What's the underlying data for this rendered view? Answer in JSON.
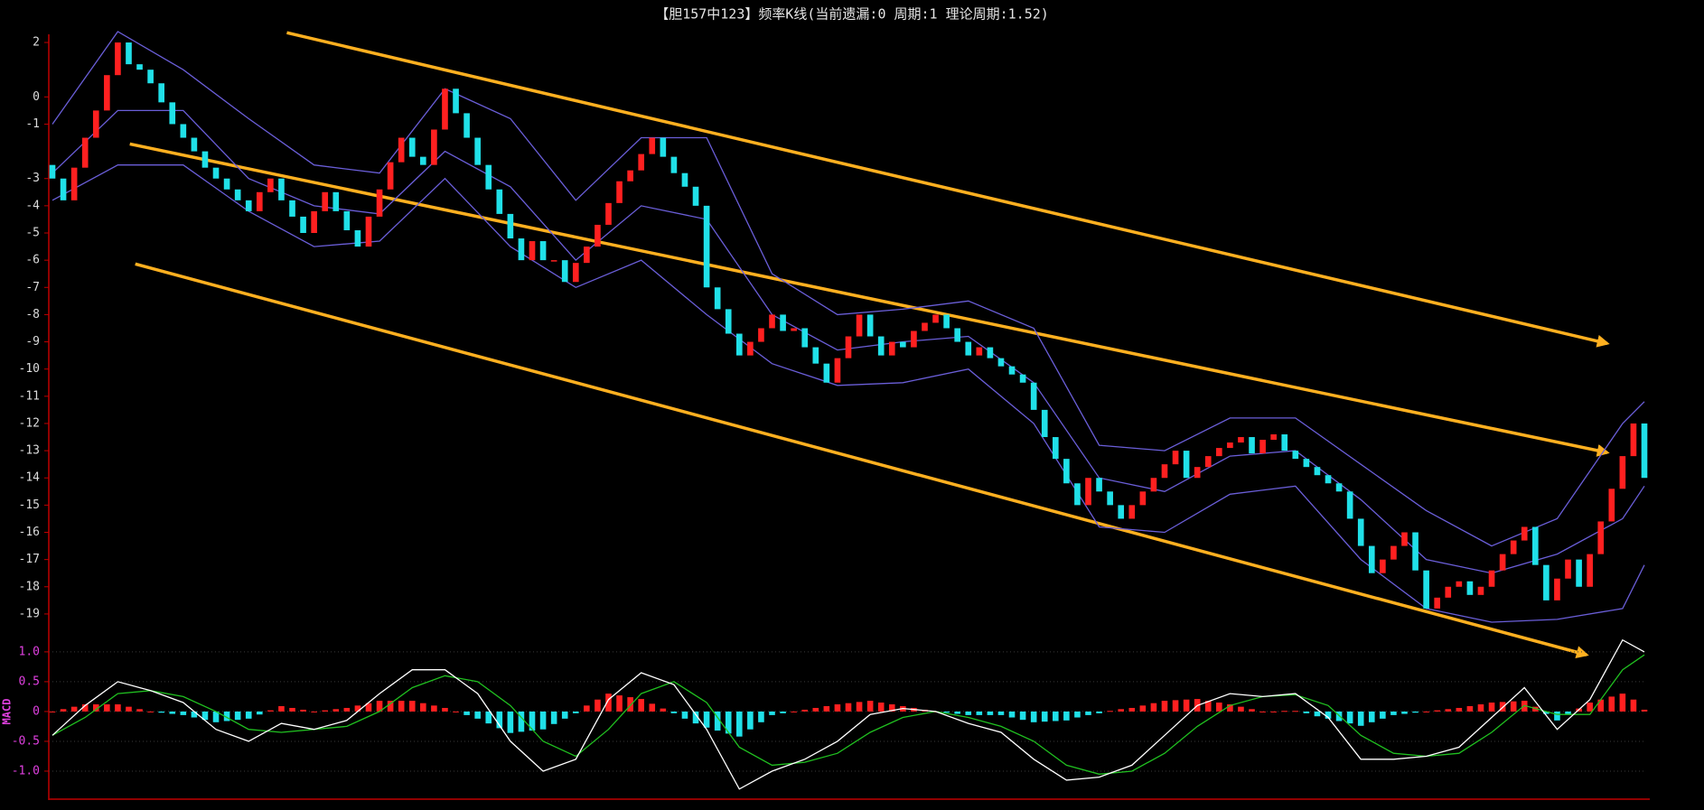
{
  "chart_data": [
    {
      "type": "candlestick",
      "title": "【胆157中123】频率K线(当前遗漏:0 周期:1 理论周期:1.52)",
      "up_color": "#ff2020",
      "down_color": "#20e0e8",
      "xlim": [
        0,
        146
      ],
      "ylim": [
        -19.6,
        2.3
      ],
      "yticks": [
        2,
        0,
        -1,
        -3,
        -4,
        -5,
        -6,
        -7,
        -8,
        -9,
        -10,
        -11,
        -12,
        -13,
        -14,
        -15,
        -16,
        -17,
        -18,
        -19
      ],
      "open": [
        -2.5,
        -3,
        -3.8,
        -2.6,
        -1.5,
        -0.5,
        0.8,
        2,
        1.2,
        1,
        0.5,
        -0.2,
        -1,
        -1.5,
        -2,
        -2.6,
        -3,
        -3.4,
        -3.8,
        -4.2,
        -3.5,
        -3,
        -3.8,
        -4.4,
        -5,
        -4.2,
        -3.5,
        -4.2,
        -4.9,
        -5.5,
        -4.4,
        -3.4,
        -2.4,
        -1.5,
        -2.2,
        -2.5,
        -1.2,
        0.3,
        -0.6,
        -1.5,
        -2.5,
        -3.4,
        -4.3,
        -5.2,
        -6,
        -5.3,
        -6,
        -6,
        -6.8,
        -6.1,
        -5.5,
        -4.7,
        -3.9,
        -3.1,
        -2.7,
        -2.1,
        -1.5,
        -2.2,
        -2.8,
        -3.3,
        -4,
        -7,
        -7.8,
        -8.7,
        -9.5,
        -9,
        -8.5,
        -8,
        -8.6,
        -8.5,
        -9.2,
        -9.8,
        -10.5,
        -9.6,
        -8.8,
        -8,
        -8.8,
        -9.5,
        -9,
        -9.2,
        -8.6,
        -8.3,
        -8,
        -8.5,
        -9,
        -9.5,
        -9.2,
        -9.6,
        -9.9,
        -10.2,
        -10.5,
        -11.5,
        -12.5,
        -13.3,
        -14.2,
        -15,
        -14,
        -14.5,
        -15,
        -15.5,
        -15,
        -14.5,
        -14,
        -13.5,
        -13,
        -14,
        -13.6,
        -13.2,
        -12.9,
        -12.7,
        -12.5,
        -13.1,
        -12.6,
        -12.4,
        -13,
        -13.3,
        -13.6,
        -13.9,
        -14.2,
        -14.5,
        -15.5,
        -16.5,
        -17.5,
        -17,
        -16.5,
        -16,
        -17.4,
        -18.8,
        -18.4,
        -18,
        -17.8,
        -18.3,
        -18,
        -17.4,
        -16.8,
        -16.3,
        -15.8,
        -17.2,
        -18.5,
        -17.7,
        -17,
        -18,
        -16.8,
        -15.6,
        -14.4,
        -13.2,
        -12
      ],
      "close": [
        -3,
        -3.8,
        -2.6,
        -1.5,
        -0.5,
        0.8,
        2,
        1.2,
        1,
        0.5,
        -0.2,
        -1,
        -1.5,
        -2,
        -2.6,
        -3,
        -3.4,
        -3.8,
        -4.2,
        -3.5,
        -3,
        -3.8,
        -4.4,
        -5,
        -4.2,
        -3.5,
        -4.2,
        -4.9,
        -5.5,
        -4.4,
        -3.4,
        -2.4,
        -1.5,
        -2.2,
        -2.5,
        -1.2,
        0.3,
        -0.6,
        -1.5,
        -2.5,
        -3.4,
        -4.3,
        -5.2,
        -6,
        -5.3,
        -6,
        -6,
        -6.8,
        -6.1,
        -5.5,
        -4.7,
        -3.9,
        -3.1,
        -2.7,
        -2.1,
        -1.5,
        -2.2,
        -2.8,
        -3.3,
        -4,
        -7,
        -7.8,
        -8.7,
        -9.5,
        -9,
        -8.5,
        -8,
        -8.6,
        -8.5,
        -9.2,
        -9.8,
        -10.5,
        -9.6,
        -8.8,
        -8,
        -8.8,
        -9.5,
        -9,
        -9.2,
        -8.6,
        -8.3,
        -8,
        -8.5,
        -9,
        -9.5,
        -9.2,
        -9.6,
        -9.9,
        -10.2,
        -10.5,
        -11.5,
        -12.5,
        -13.3,
        -14.2,
        -15,
        -14,
        -14.5,
        -15,
        -15.5,
        -15,
        -14.5,
        -14,
        -13.5,
        -13,
        -14,
        -13.6,
        -13.2,
        -12.9,
        -12.7,
        -12.5,
        -13.1,
        -12.6,
        -12.4,
        -13,
        -13.3,
        -13.6,
        -13.9,
        -14.2,
        -14.5,
        -15.5,
        -16.5,
        -17.5,
        -17,
        -16.5,
        -16,
        -17.4,
        -18.8,
        -18.4,
        -18,
        -17.8,
        -18.3,
        -18,
        -17.4,
        -16.8,
        -16.3,
        -15.8,
        -17.2,
        -18.5,
        -17.7,
        -17,
        -18,
        -16.8,
        -15.6,
        -14.4,
        -13.2,
        -12,
        -14
      ],
      "bands": {
        "color": "#6a5ed8",
        "x": [
          0,
          6,
          12,
          18,
          24,
          30,
          36,
          42,
          48,
          54,
          60,
          66,
          72,
          78,
          84,
          90,
          96,
          102,
          108,
          114,
          120,
          126,
          132,
          138,
          144,
          146
        ],
        "upper": [
          -1,
          2.4,
          1,
          -0.8,
          -2.5,
          -2.8,
          0.3,
          -0.8,
          -3.8,
          -1.5,
          -1.5,
          -6.5,
          -8,
          -7.8,
          -7.5,
          -8.5,
          -12.8,
          -13,
          -11.8,
          -11.8,
          -13.5,
          -15.2,
          -16.5,
          -15.5,
          -12,
          -11.2
        ],
        "mid": [
          -2.8,
          -0.5,
          -0.5,
          -3,
          -4,
          -4.3,
          -2,
          -3.3,
          -6,
          -4,
          -4.5,
          -8,
          -9.3,
          -9,
          -8.8,
          -10.5,
          -14,
          -14.5,
          -13.2,
          -13,
          -14.8,
          -17,
          -17.5,
          -16.8,
          -15.5,
          -14.3
        ],
        "lower": [
          -3.8,
          -2.5,
          -2.5,
          -4.2,
          -5.5,
          -5.3,
          -3,
          -5.5,
          -7,
          -6,
          -8,
          -9.8,
          -10.6,
          -10.5,
          -10,
          -12,
          -15.8,
          -16,
          -14.6,
          -14.3,
          -17,
          -18.8,
          -19.3,
          -19.2,
          -18.8,
          -17.2
        ]
      },
      "trend_color": "#ffb020",
      "trend_lines": [
        {
          "x": [
            21.5,
            142.6
          ],
          "y": [
            2.36,
            -9.06
          ]
        },
        {
          "x": [
            7.1,
            142.6
          ],
          "y": [
            -1.73,
            -13.07
          ]
        },
        {
          "x": [
            7.6,
            140.7
          ],
          "y": [
            -6.14,
            -20.5
          ]
        }
      ]
    },
    {
      "type": "macd",
      "ylabel": "MACD",
      "xlim": [
        0,
        146
      ],
      "ylim": [
        -1.47,
        1.18
      ],
      "yticks": [
        {
          "value": 1,
          "label": "1.0"
        },
        0.5,
        0,
        -0.5,
        {
          "value": -1,
          "label": "-1.0"
        }
      ],
      "x": [
        0,
        3,
        6,
        9,
        12,
        15,
        18,
        21,
        24,
        27,
        30,
        33,
        36,
        39,
        42,
        45,
        48,
        51,
        54,
        57,
        60,
        63,
        66,
        69,
        72,
        75,
        78,
        81,
        84,
        87,
        90,
        93,
        96,
        99,
        102,
        105,
        108,
        111,
        114,
        117,
        120,
        123,
        126,
        129,
        132,
        135,
        138,
        141,
        144,
        146
      ],
      "dif": {
        "color": "#ffffff",
        "values": [
          -0.4,
          0.1,
          0.5,
          0.35,
          0.15,
          -0.3,
          -0.5,
          -0.2,
          -0.3,
          -0.15,
          0.3,
          0.7,
          0.7,
          0.3,
          -0.5,
          -1,
          -0.8,
          0.2,
          0.65,
          0.45,
          -0.3,
          -1.3,
          -1,
          -0.8,
          -0.5,
          -0.05,
          0.05,
          0,
          -0.2,
          -0.35,
          -0.8,
          -1.15,
          -1.1,
          -0.9,
          -0.4,
          0.1,
          0.3,
          0.25,
          0.3,
          -0.1,
          -0.8,
          -0.8,
          -0.75,
          -0.6,
          -0.1,
          0.4,
          -0.3,
          0.2,
          1.2,
          1
        ]
      },
      "dea": {
        "color": "#20c020",
        "values": [
          -0.4,
          -0.1,
          0.3,
          0.35,
          0.25,
          0,
          -0.3,
          -0.35,
          -0.3,
          -0.25,
          0,
          0.4,
          0.6,
          0.5,
          0.1,
          -0.5,
          -0.75,
          -0.3,
          0.3,
          0.5,
          0.15,
          -0.6,
          -0.9,
          -0.85,
          -0.7,
          -0.35,
          -0.1,
          0,
          -0.1,
          -0.25,
          -0.5,
          -0.9,
          -1.05,
          -1,
          -0.7,
          -0.25,
          0.1,
          0.25,
          0.28,
          0.1,
          -0.4,
          -0.7,
          -0.75,
          -0.7,
          -0.35,
          0.1,
          -0.05,
          -0.05,
          0.7,
          0.95
        ]
      },
      "hist": [
        0,
        0.04,
        0.08,
        0.12,
        0.12,
        0.12,
        0.12,
        0.08,
        0.04,
        0,
        -0.02,
        -0.04,
        -0.06,
        -0.1,
        -0.14,
        -0.18,
        -0.16,
        -0.14,
        -0.12,
        -0.05,
        0.02,
        0.09,
        0.06,
        0.03,
        0,
        0.02,
        0.04,
        0.06,
        0.1,
        0.14,
        0.18,
        0.18,
        0.18,
        0.18,
        0.14,
        0.1,
        0.06,
        0,
        -0.06,
        -0.12,
        -0.2,
        -0.28,
        -0.36,
        -0.34,
        -0.32,
        -0.3,
        -0.21,
        -0.12,
        -0.03,
        0.1,
        0.2,
        0.3,
        0.27,
        0.24,
        0.21,
        0.13,
        0.05,
        -0.03,
        -0.12,
        -0.2,
        -0.27,
        -0.32,
        -0.37,
        -0.42,
        -0.3,
        -0.18,
        -0.06,
        -0.03,
        0,
        0.03,
        0.06,
        0.09,
        0.12,
        0.14,
        0.16,
        0.18,
        0.15,
        0.12,
        0.09,
        0.06,
        0.03,
        0,
        -0.02,
        -0.04,
        -0.06,
        -0.06,
        -0.06,
        -0.06,
        -0.1,
        -0.14,
        -0.18,
        -0.17,
        -0.16,
        -0.15,
        -0.1,
        -0.06,
        -0.03,
        0.01,
        0.04,
        0.06,
        0.1,
        0.14,
        0.18,
        0.19,
        0.2,
        0.21,
        0.18,
        0.15,
        0.12,
        0.08,
        0.04,
        0,
        0,
        0.01,
        0.01,
        -0.03,
        -0.08,
        -0.12,
        -0.16,
        -0.2,
        -0.24,
        -0.18,
        -0.12,
        -0.06,
        -0.04,
        -0.02,
        0,
        0.02,
        0.04,
        0.06,
        0.09,
        0.12,
        0.15,
        0.16,
        0.17,
        0.18,
        0.08,
        -0.04,
        -0.15,
        -0.05,
        0.05,
        0.15,
        0.2,
        0.25,
        0.3,
        0.2,
        0.03
      ],
      "up_color": "#ff2020",
      "down_color": "#20e0e8"
    }
  ]
}
